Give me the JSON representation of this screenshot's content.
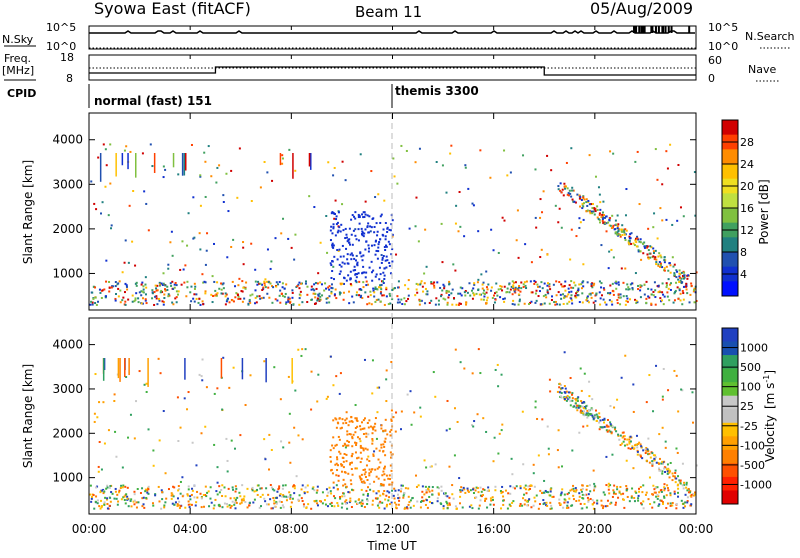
{
  "header": {
    "title": "Syowa East (fitACF)",
    "beam": "Beam 11",
    "date": "05/Aug/2009"
  },
  "top_panels": {
    "nsky_label": "N.Sky",
    "nsky_ticks": [
      "10^5",
      "10^0"
    ],
    "nsearch_label": "N.Search",
    "nsearch_ticks": [
      "10^5",
      "10^0"
    ],
    "freq_label_line1": "Freq.",
    "freq_label_line2": "[MHz]",
    "freq_ticks": [
      "18",
      "8"
    ],
    "nave_label": "Nave",
    "nave_ticks": [
      "60",
      "0"
    ],
    "cpid_label": "CPID",
    "cpid_modes": [
      {
        "name": "normal (fast) 151",
        "start_hour": 0
      },
      {
        "name": "themis 3300",
        "start_hour": 12
      }
    ]
  },
  "chart_data": [
    {
      "type": "heatmap",
      "name": "power",
      "ylabel": "Slant Range [km]",
      "yticks": [
        "1000",
        "2000",
        "3000",
        "4000"
      ],
      "ylim": [
        180,
        4600
      ],
      "xlim": [
        0,
        24
      ],
      "colorbar_label": "Power [dB]",
      "colorbar_ticks": [
        "28",
        "24",
        "20",
        "16",
        "12",
        "8",
        "4"
      ],
      "colorbar_colors": [
        "#d00000",
        "#ff4000",
        "#ff8c00",
        "#ffc000",
        "#f0e020",
        "#c0e040",
        "#80c040",
        "#40a060",
        "#208080",
        "#2050b0",
        "#1030d0",
        "#0010ff"
      ]
    },
    {
      "type": "heatmap",
      "name": "velocity",
      "ylabel": "Slant Range [km]",
      "yticks": [
        "1000",
        "2000",
        "3000",
        "4000"
      ],
      "ylim": [
        180,
        4600
      ],
      "xlim": [
        0,
        24
      ],
      "xlabel": "Time UT",
      "xticks": [
        "00:00",
        "04:00",
        "08:00",
        "12:00",
        "16:00",
        "20:00",
        "00:00"
      ],
      "colorbar_label_main": "Velocity",
      "colorbar_label_units": "[m s",
      "colorbar_label_sup": "-1",
      "colorbar_label_end": "]",
      "colorbar_ticks": [
        "1000",
        "500",
        "100",
        "25",
        "-25",
        "-100",
        "-500",
        "-1000"
      ],
      "colorbar_colors": [
        "#2040c0",
        "#1850b0",
        "#30a060",
        "#40b040",
        "#60c030",
        "#c8c8c8",
        "#c0c0c0",
        "#ffc000",
        "#ffa000",
        "#ff8000",
        "#ff5000",
        "#ff2000",
        "#e00000"
      ]
    }
  ]
}
